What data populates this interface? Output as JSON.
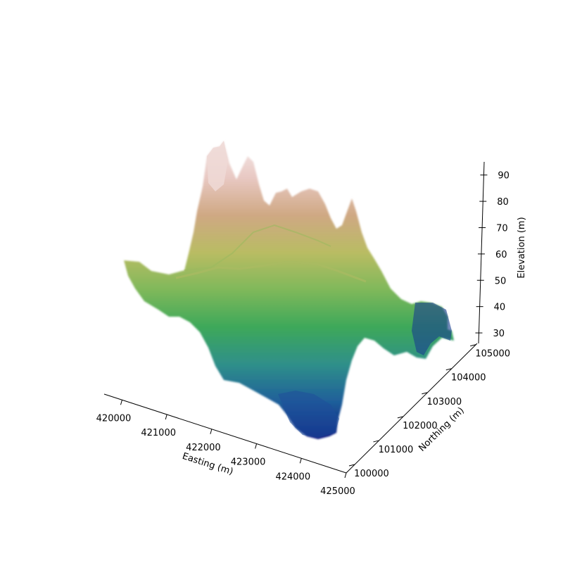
{
  "chart_data": {
    "type": "surface3d",
    "title": "",
    "xlabel": "Easting (m)",
    "ylabel": "Northing (m)",
    "zlabel": "Elevation (m)",
    "xlim": [
      419600,
      425000
    ],
    "ylim": [
      100000,
      105400
    ],
    "zlim": [
      26,
      95
    ],
    "x_ticks": [
      420000,
      421000,
      422000,
      423000,
      424000,
      425000
    ],
    "y_ticks": [
      100000,
      101000,
      102000,
      103000,
      104000,
      105000
    ],
    "z_ticks": [
      30,
      40,
      50,
      60,
      70,
      80,
      90
    ],
    "colormap": "gist_earth",
    "colormap_stops": [
      "#0a1a80",
      "#1f5f9a",
      "#2f8f8a",
      "#3da85a",
      "#7fb85a",
      "#b9bc63",
      "#cfa883",
      "#e8c8c2",
      "#f5eaea"
    ],
    "grid": false,
    "surface_elevation_grid": {
      "note_rows": "rows = northing from 105000 (back) to 100000 (front); cols = easting 420000..425000",
      "northing": [
        105000,
        104000,
        103000,
        102000,
        101000,
        100000
      ],
      "easting": [
        420000,
        421000,
        422000,
        423000,
        424000,
        425000
      ],
      "z": [
        [
          60,
          88,
          74,
          70,
          72,
          40
        ],
        [
          58,
          82,
          66,
          62,
          60,
          35
        ],
        [
          62,
          70,
          60,
          66,
          58,
          30
        ],
        [
          60,
          62,
          52,
          62,
          56,
          40
        ],
        [
          58,
          60,
          45,
          40,
          58,
          45
        ],
        [
          56,
          58,
          40,
          28,
          52,
          50
        ]
      ]
    }
  }
}
